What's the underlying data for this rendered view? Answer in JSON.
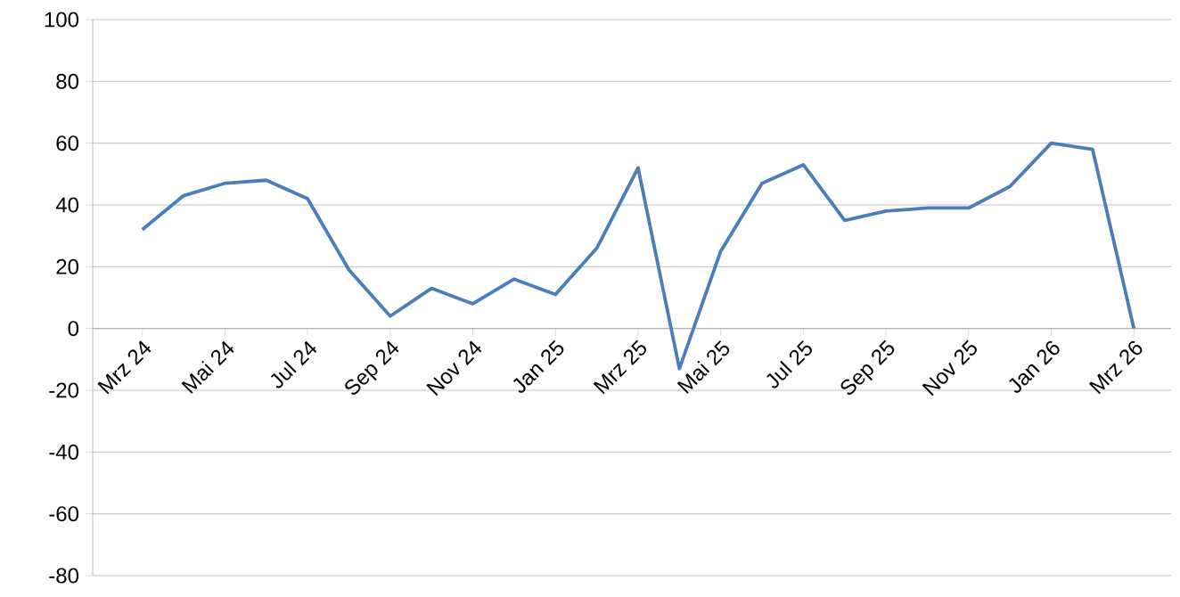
{
  "chart_data": {
    "type": "line",
    "categories": [
      "Mrz 24",
      null,
      "Mai 24",
      null,
      "Jul 24",
      null,
      "Sep 24",
      null,
      "Nov 24",
      null,
      "Jan 25",
      null,
      "Mrz 25",
      null,
      "Mai 25",
      null,
      "Jul 25",
      null,
      "Sep 25",
      null,
      "Nov 25",
      null,
      "Jan 26",
      null,
      "Mrz 26"
    ],
    "series": [
      {
        "color": "#4a7ebb",
        "values": [
          32,
          43,
          47,
          48,
          42,
          19,
          4,
          13,
          8,
          16,
          11,
          26,
          52,
          -13,
          25,
          47,
          53,
          35,
          38,
          39,
          39,
          46,
          60,
          58,
          0
        ]
      }
    ],
    "ylim": [
      -80,
      100
    ],
    "yticks": [
      -80,
      -60,
      -40,
      -20,
      0,
      20,
      40,
      60,
      80,
      100
    ],
    "grid": "y",
    "marker": "none",
    "line_style": "solid"
  }
}
